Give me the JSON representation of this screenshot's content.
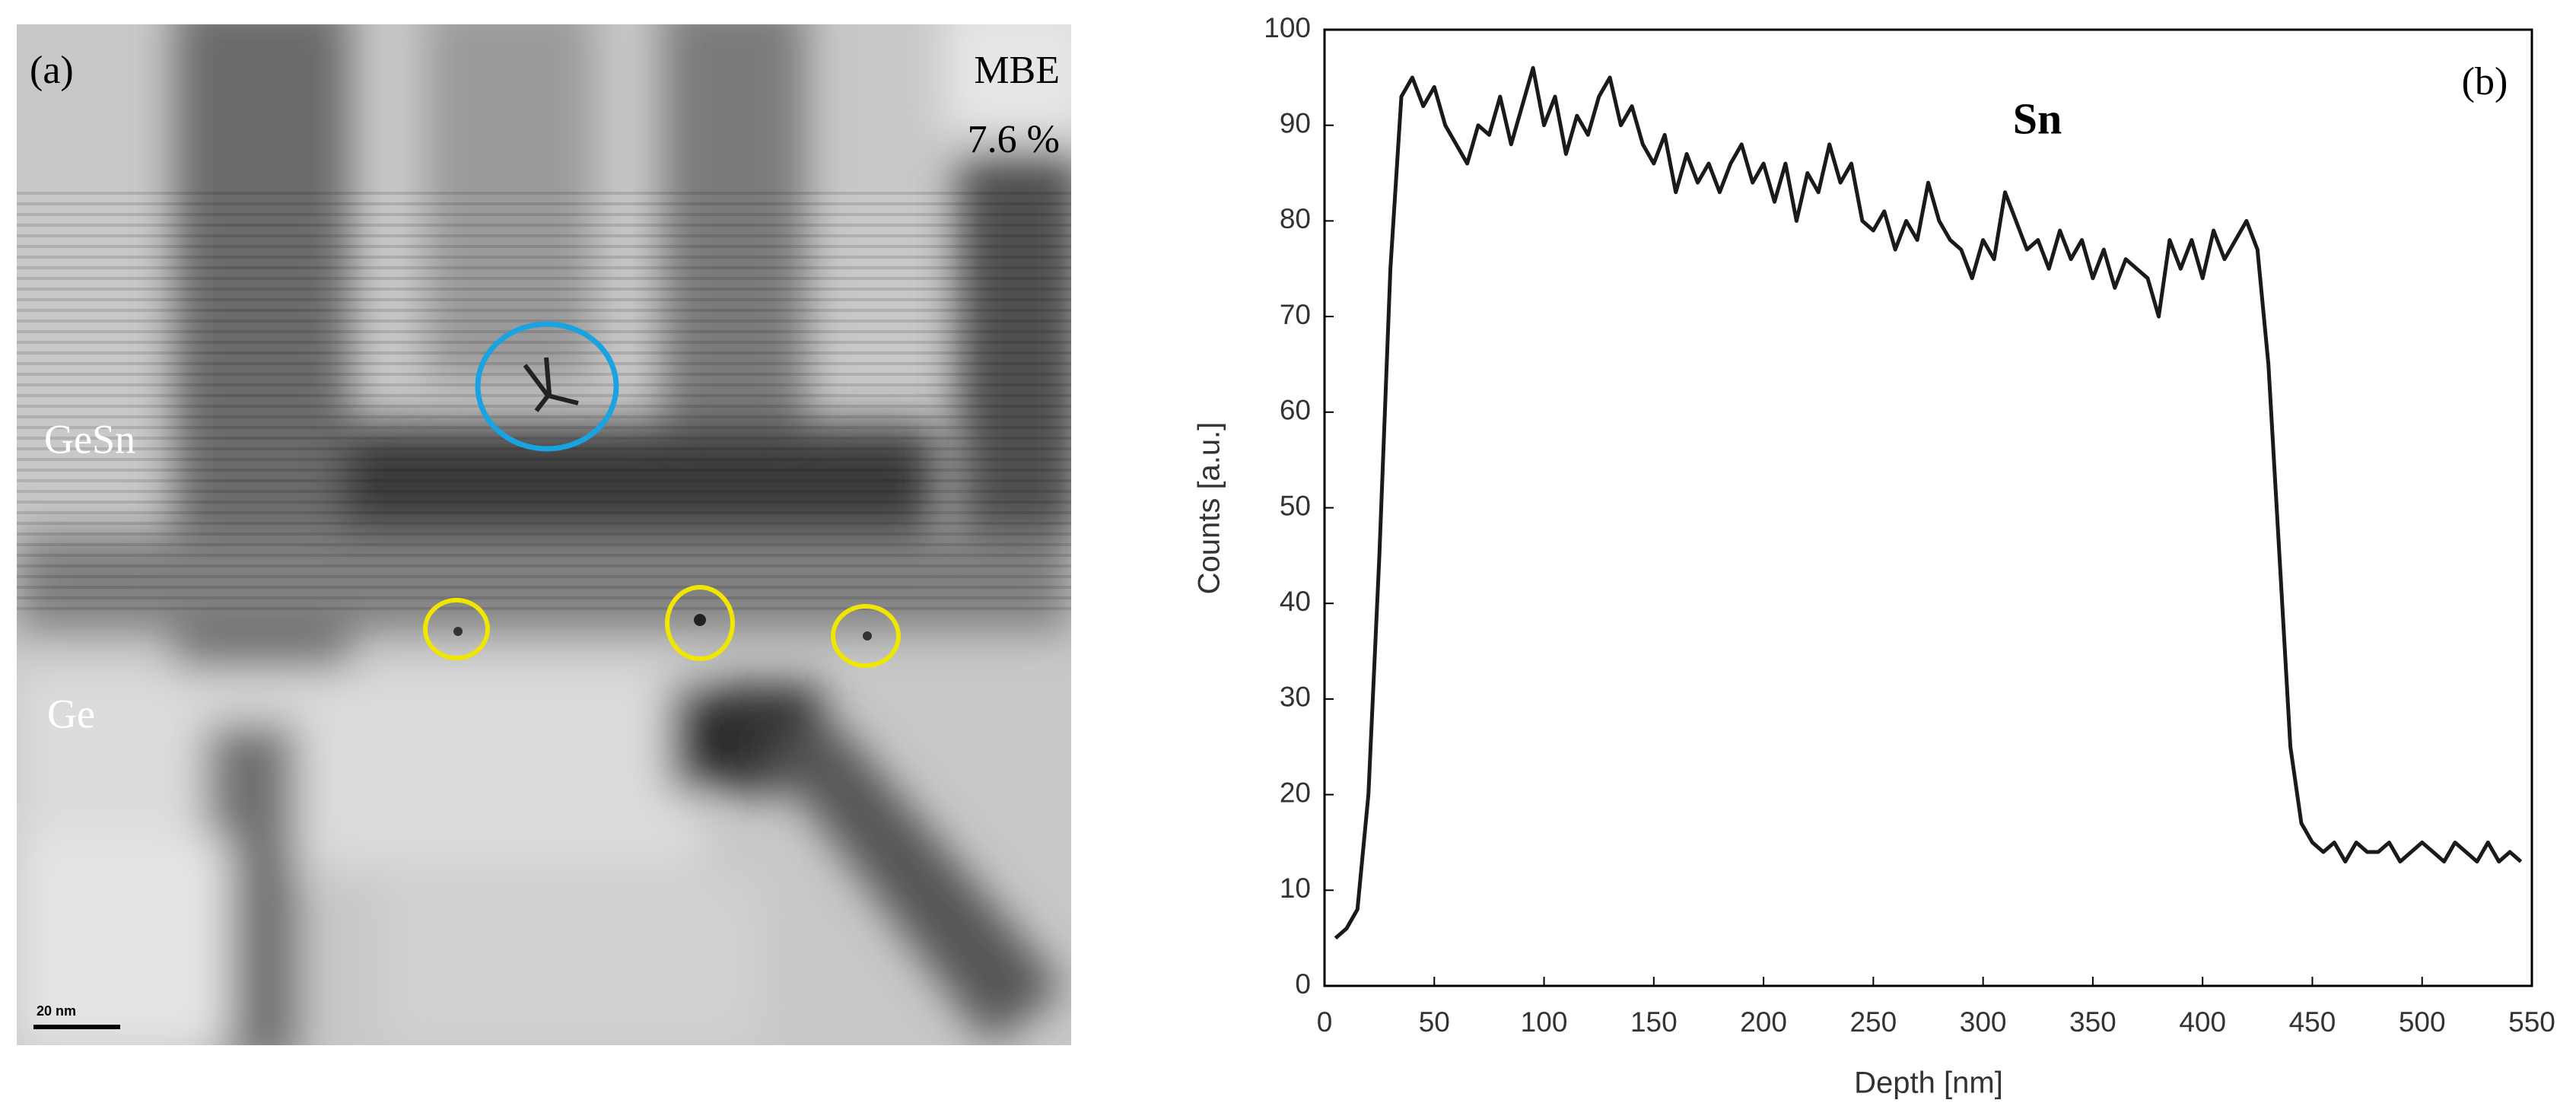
{
  "image_panel": {
    "label": "(a)",
    "method": "MBE",
    "composition": "7.6 %",
    "layer_top": "GeSn",
    "layer_bottom": "Ge",
    "scale_bar": "20 nm"
  },
  "chart_data": {
    "type": "line",
    "panel_label": "(b)",
    "annotation": "Sn",
    "x_label": "Depth [nm]",
    "y_label": "Counts [a.u.]",
    "xlim": [
      0,
      550
    ],
    "ylim": [
      0,
      100
    ],
    "xticks": [
      0,
      50,
      100,
      150,
      200,
      250,
      300,
      350,
      400,
      450,
      500,
      550
    ],
    "yticks": [
      0,
      10,
      20,
      30,
      40,
      50,
      60,
      70,
      80,
      90,
      100
    ],
    "color": "#1a1a1a",
    "x": [
      5,
      10,
      15,
      20,
      25,
      30,
      35,
      40,
      45,
      50,
      55,
      60,
      65,
      70,
      75,
      80,
      85,
      90,
      95,
      100,
      105,
      110,
      115,
      120,
      125,
      130,
      135,
      140,
      145,
      150,
      155,
      160,
      165,
      170,
      175,
      180,
      185,
      190,
      195,
      200,
      205,
      210,
      215,
      220,
      225,
      230,
      235,
      240,
      245,
      250,
      255,
      260,
      265,
      270,
      275,
      280,
      285,
      290,
      295,
      300,
      305,
      310,
      315,
      320,
      325,
      330,
      335,
      340,
      345,
      350,
      355,
      360,
      365,
      370,
      375,
      380,
      385,
      390,
      395,
      400,
      405,
      410,
      415,
      420,
      425,
      430,
      435,
      440,
      445,
      450,
      455,
      460,
      465,
      470,
      475,
      480,
      485,
      490,
      495,
      500,
      505,
      510,
      515,
      520,
      525,
      530,
      535,
      540,
      545
    ],
    "values": [
      5,
      6,
      8,
      20,
      45,
      75,
      93,
      95,
      92,
      94,
      90,
      88,
      86,
      90,
      89,
      93,
      88,
      92,
      96,
      90,
      93,
      87,
      91,
      89,
      93,
      95,
      90,
      92,
      88,
      86,
      89,
      83,
      87,
      84,
      86,
      83,
      86,
      88,
      84,
      86,
      82,
      86,
      80,
      85,
      83,
      88,
      84,
      86,
      80,
      79,
      81,
      77,
      80,
      78,
      84,
      80,
      78,
      77,
      74,
      78,
      76,
      83,
      80,
      77,
      78,
      75,
      79,
      76,
      78,
      74,
      77,
      73,
      76,
      75,
      74,
      70,
      78,
      75,
      78,
      74,
      79,
      76,
      78,
      80,
      77,
      65,
      45,
      25,
      17,
      15,
      14,
      15,
      13,
      15,
      14,
      14,
      15,
      13,
      14,
      15,
      14,
      13,
      15,
      14,
      13,
      15,
      13,
      14,
      13
    ]
  }
}
